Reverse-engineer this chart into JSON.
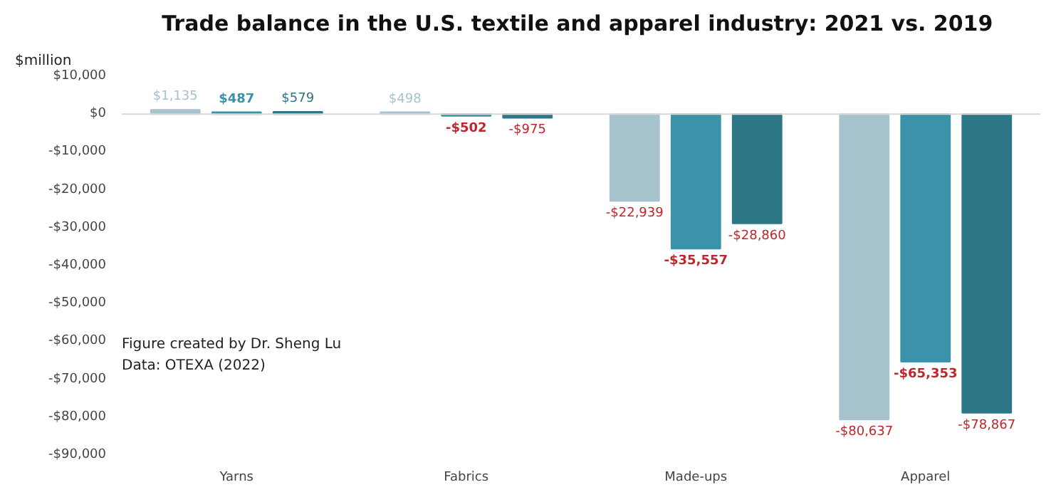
{
  "chart_data": {
    "type": "bar",
    "title": "Trade balance in the U.S. textile and apparel industry: 2021  vs. 2019",
    "ylabel": "$million",
    "categories": [
      "Yarns",
      "Fabrics",
      "Made-ups",
      "Apparel"
    ],
    "series": [
      {
        "color": "#a6c3cd",
        "values": [
          1135,
          498,
          -22939,
          -80637
        ],
        "value_labels": [
          "$1,135",
          "$498",
          "-$22,939",
          "-$80,637"
        ]
      },
      {
        "color": "#3a93a8",
        "values": [
          487,
          -502,
          -35557,
          -65353
        ],
        "value_labels": [
          "$487",
          "-$502",
          "-$35,557",
          "-$65,353"
        ]
      },
      {
        "color": "#2d7787",
        "values": [
          579,
          -975,
          -28860,
          -78867
        ],
        "value_labels": [
          "$579",
          "-$975",
          "-$28,860",
          "-$78,867"
        ]
      }
    ],
    "ylim": [
      -90000,
      10000
    ],
    "yticks": [
      {
        "value": 10000,
        "label": "$10,000"
      },
      {
        "value": 0,
        "label": "$0"
      },
      {
        "value": -10000,
        "label": "-$10,000"
      },
      {
        "value": -20000,
        "label": "-$20,000"
      },
      {
        "value": -30000,
        "label": "-$30,000"
      },
      {
        "value": -40000,
        "label": "-$40,000"
      },
      {
        "value": -50000,
        "label": "-$50,000"
      },
      {
        "value": -60000,
        "label": "-$60,000"
      },
      {
        "value": -70000,
        "label": "-$70,000"
      },
      {
        "value": -80000,
        "label": "-$80,000"
      },
      {
        "value": -90000,
        "label": "-$90,000"
      }
    ],
    "annotations": [
      "Figure created by Dr. Sheng Lu",
      "Data:  OTEXA (2022)"
    ]
  }
}
